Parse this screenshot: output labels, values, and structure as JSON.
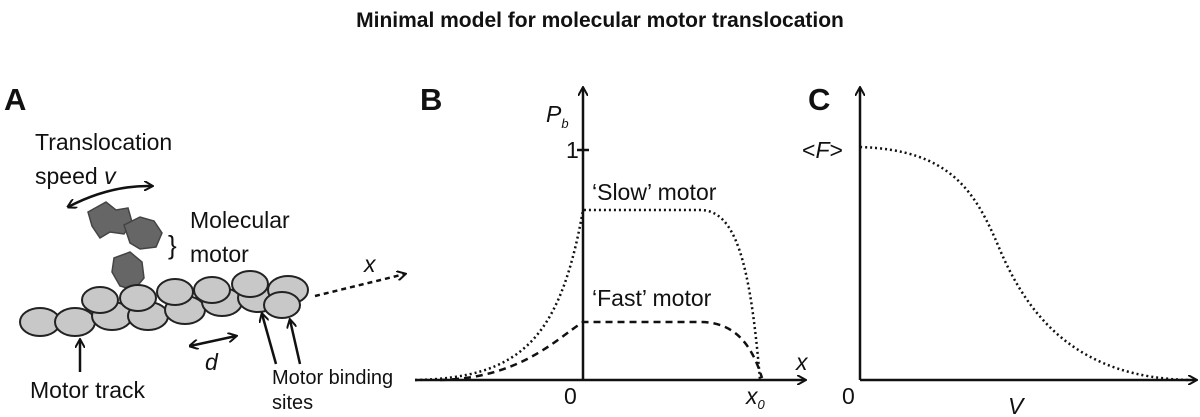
{
  "title": "Minimal model for molecular motor translocation",
  "panel_a": {
    "label": "A",
    "speed_label": [
      "Translocation",
      "speed"
    ],
    "speed_symbol": "v",
    "motor_label": [
      "Molecular",
      "motor"
    ],
    "axis_symbol": "x",
    "spacing_symbol": "d",
    "track_label": "Motor track",
    "sites_label": [
      "Motor binding",
      "sites"
    ]
  },
  "panel_b": {
    "label": "B",
    "y_symbol": "P",
    "y_subscript": "b",
    "y_tick": "1",
    "x_tick_zero": "0",
    "x_end_symbol": "x",
    "x_end_subscript": "0",
    "x_axis": "x",
    "curves": [
      "‘Slow’ motor",
      "‘Fast’ motor"
    ]
  },
  "panel_c": {
    "label": "C",
    "y_tick": {
      "open": "<",
      "symbol": "F",
      "close": ">"
    },
    "x_tick_zero": "0",
    "x_axis": "V"
  }
}
